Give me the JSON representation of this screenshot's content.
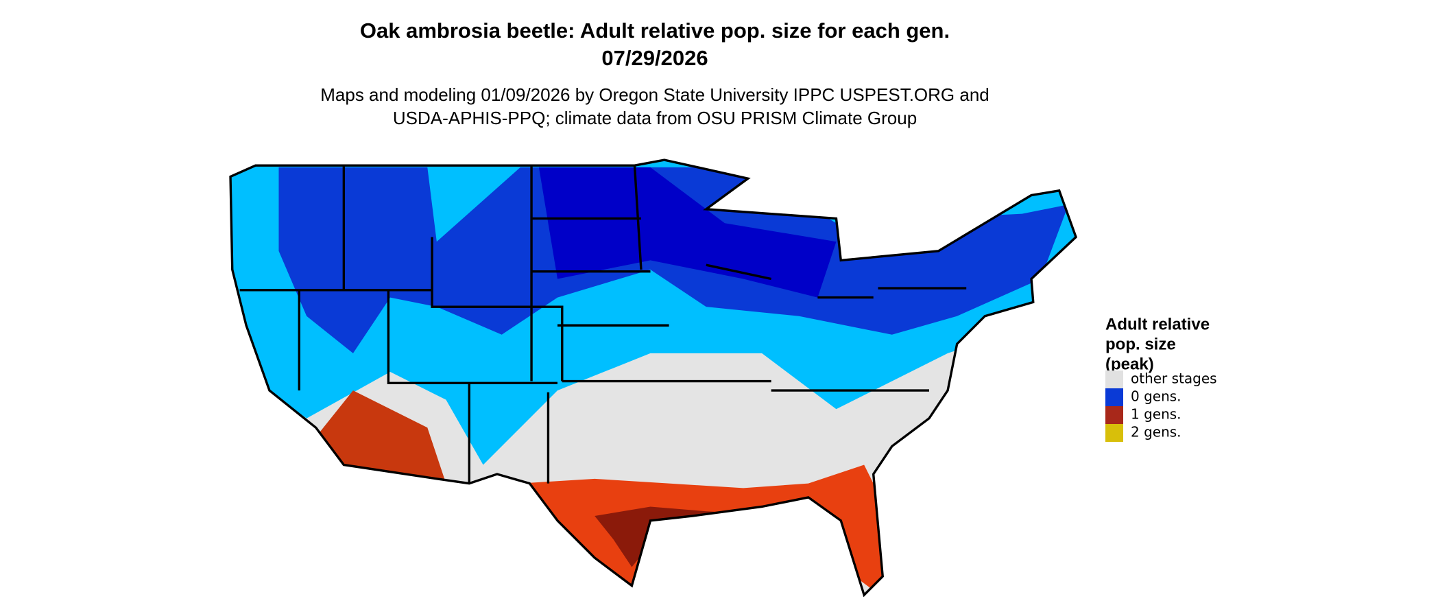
{
  "header": {
    "title": "Oak ambrosia beetle: Adult relative pop. size for each gen.",
    "date": "07/29/2026",
    "subtitle_lines": [
      "Maps and modeling 01/09/2026 by Oregon State University IPPC USPEST.ORG and",
      "USDA-APHIS-PPQ; climate data from OSU PRISM Climate Group"
    ]
  },
  "legend": {
    "title_lines": [
      "Adult relative",
      "pop. size",
      "(peak)"
    ],
    "items": [
      {
        "label": "other stages",
        "color": "#e1e1e1"
      },
      {
        "label": "0 gens.",
        "color": "#0a3ad6"
      },
      {
        "label": "1 gens.",
        "color": "#a8281a"
      },
      {
        "label": "2 gens.",
        "color": "#d8bf0a"
      }
    ]
  }
}
